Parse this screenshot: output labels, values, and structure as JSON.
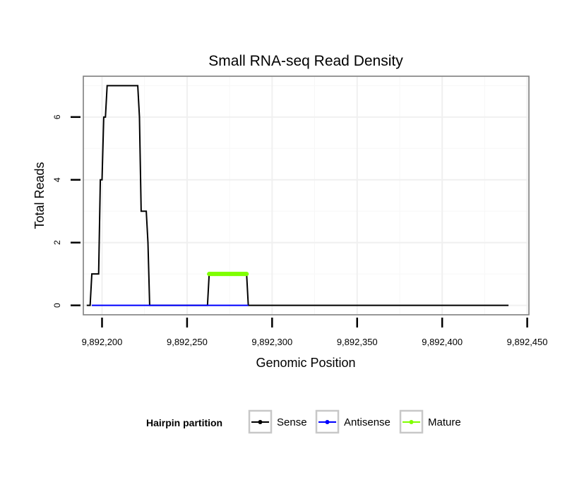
{
  "chart_data": {
    "type": "line",
    "title": "Small RNA-seq Read Density",
    "xlabel": "Genomic Position",
    "ylabel": "Total Reads",
    "xlim": [
      9892189,
      9892451
    ],
    "ylim": [
      -0.3,
      7.3
    ],
    "x_ticks": [
      9892200,
      9892250,
      9892300,
      9892350,
      9892400,
      9892450
    ],
    "x_tick_labels": [
      "9,892,200",
      "9,892,250",
      "9,892,300",
      "9,892,350",
      "9,892,400",
      "9,892,450"
    ],
    "y_ticks": [
      0,
      2,
      4,
      6
    ],
    "y_tick_labels": [
      "0",
      "2",
      "4",
      "6"
    ],
    "grid": true,
    "legend": {
      "title": "Hairpin partition",
      "position": "bottom",
      "entries": [
        "Sense",
        "Antisense",
        "Mature"
      ]
    },
    "series": [
      {
        "name": "Sense",
        "color": "#000000",
        "points": [
          [
            9892191,
            0
          ],
          [
            9892193,
            0
          ],
          [
            9892194,
            1
          ],
          [
            9892198,
            1
          ],
          [
            9892199,
            4
          ],
          [
            9892200,
            4
          ],
          [
            9892201,
            6
          ],
          [
            9892202,
            6
          ],
          [
            9892203,
            7
          ],
          [
            9892221,
            7
          ],
          [
            9892222,
            6
          ],
          [
            9892223,
            3
          ],
          [
            9892226,
            3
          ],
          [
            9892227,
            2
          ],
          [
            9892228,
            0
          ],
          [
            9892262,
            0
          ],
          [
            9892263,
            1
          ],
          [
            9892285,
            1
          ],
          [
            9892286,
            0
          ],
          [
            9892439,
            0
          ]
        ]
      },
      {
        "name": "Antisense",
        "color": "#0000ff",
        "points": [
          [
            9892194,
            0
          ],
          [
            9892228,
            0
          ],
          [
            9892263,
            0
          ],
          [
            9892286,
            0
          ]
        ]
      },
      {
        "name": "Mature",
        "color": "#7fff00",
        "points": [
          [
            9892263,
            1
          ],
          [
            9892285,
            1
          ]
        ]
      }
    ]
  }
}
